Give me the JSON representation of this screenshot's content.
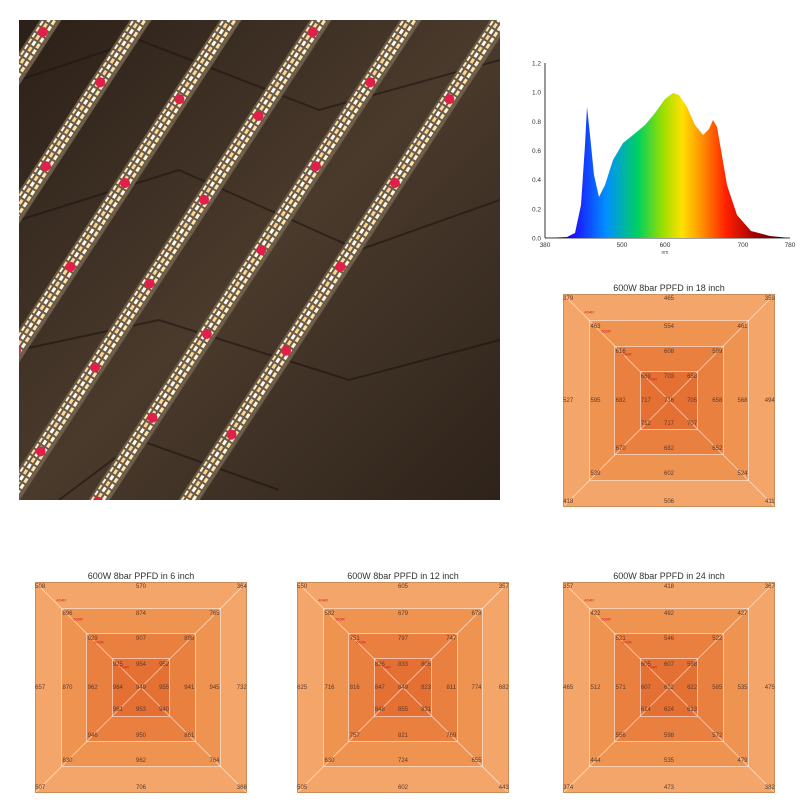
{
  "spectrum": {
    "y_ticks": [
      "1.2",
      "1.0",
      "0.8",
      "0.6",
      "0.4",
      "0.2",
      "0.0"
    ],
    "x_ticks": [
      "380",
      "500",
      "600",
      "700",
      "780"
    ],
    "x_sub": "nm"
  },
  "ppfd": {
    "18": {
      "title": "600W 8bar PPFD in 18 inch",
      "legend": [
        "404R",
        "563R",
        "649R",
        "704R"
      ],
      "outer": [
        "379",
        "465",
        "359",
        "494",
        "411",
        "506",
        "418",
        "527"
      ],
      "r1": [
        "463",
        "554",
        "461",
        "568",
        "524",
        "602",
        "539",
        "595"
      ],
      "r2": [
        "616",
        "608",
        "599",
        "658",
        "652",
        "682",
        "670",
        "682"
      ],
      "r3": [
        "669",
        "703",
        "658",
        "705",
        "707",
        "717",
        "712",
        "717"
      ],
      "center": "716"
    },
    "6": {
      "title": "600W 8bar PPFD in 6 inch",
      "legend": [
        "404R",
        "563R",
        "649R",
        "704R"
      ],
      "outer": [
        "508",
        "570",
        "364",
        "732",
        "368",
        "706",
        "507",
        "657"
      ],
      "r1": [
        "896",
        "874",
        "765",
        "945",
        "764",
        "962",
        "830",
        "870"
      ],
      "r2": [
        "929",
        "907",
        "898",
        "941",
        "861",
        "950",
        "946",
        "962"
      ],
      "r3": [
        "925",
        "954",
        "952",
        "955",
        "940",
        "953",
        "961",
        "964"
      ],
      "center": "949"
    },
    "12": {
      "title": "600W 8bar PPFD in 12 inch",
      "legend": [
        "404R",
        "563R",
        "649R",
        "704R"
      ],
      "outer": [
        "550",
        "605",
        "357",
        "682",
        "443",
        "602",
        "505",
        "625"
      ],
      "r1": [
        "582",
        "679",
        "678",
        "774",
        "655",
        "724",
        "630",
        "716"
      ],
      "r2": [
        "751",
        "797",
        "747",
        "811",
        "769",
        "821",
        "757",
        "816"
      ],
      "r3": [
        "826",
        "833",
        "805",
        "823",
        "831",
        "855",
        "848",
        "847"
      ],
      "center": "849"
    },
    "24": {
      "title": "600W 8bar PPFD in 24 inch",
      "legend": [
        "404R",
        "563R",
        "649R",
        "704R"
      ],
      "outer": [
        "357",
        "418",
        "367",
        "475",
        "382",
        "473",
        "374",
        "465"
      ],
      "r1": [
        "422",
        "492",
        "427",
        "535",
        "479",
        "535",
        "444",
        "512"
      ],
      "r2": [
        "521",
        "546",
        "522",
        "585",
        "572",
        "598",
        "556",
        "571"
      ],
      "r3": [
        "605",
        "607",
        "598",
        "622",
        "613",
        "624",
        "614",
        "607"
      ],
      "center": "622"
    }
  }
}
